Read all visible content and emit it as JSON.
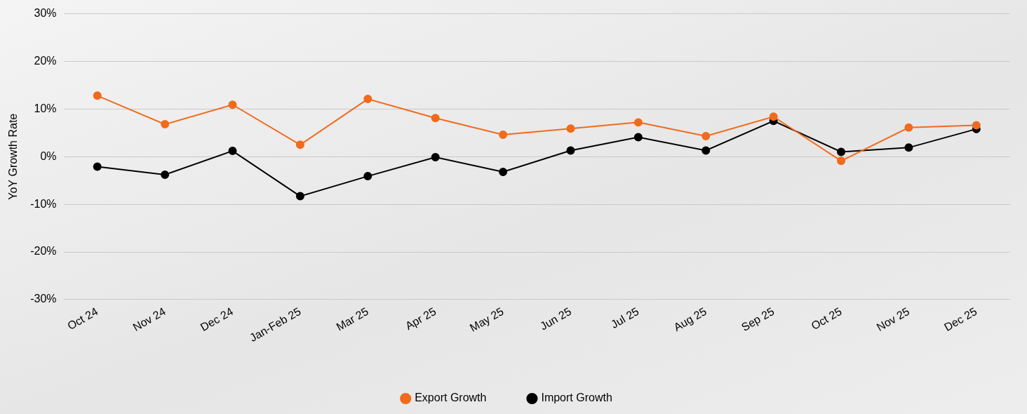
{
  "chart_data": {
    "type": "line",
    "y_label": "YoY Growth Rate",
    "categories": [
      "Oct 24",
      "Nov 24",
      "Dec 24",
      "Jan-Feb 25",
      "Mar 25",
      "Apr 25",
      "May 25",
      "Jun 25",
      "Jul 25",
      "Aug 25",
      "Sep 25",
      "Oct 25",
      "Nov 25",
      "Dec 25"
    ],
    "series": [
      {
        "name": "Export Growth",
        "color": "#f26a1b",
        "marker": "circle",
        "line_style": "solid",
        "values": [
          12.8,
          6.8,
          10.9,
          2.5,
          12.1,
          8.1,
          4.6,
          5.9,
          7.2,
          4.3,
          8.4,
          -0.9,
          6.1,
          6.6
        ]
      },
      {
        "name": "Import Growth",
        "color": "#000000",
        "marker": "circle",
        "line_style": "solid",
        "values": [
          -2.1,
          -3.8,
          1.2,
          -8.3,
          -4.1,
          -0.1,
          -3.2,
          1.3,
          4.1,
          1.3,
          7.5,
          1.0,
          1.9,
          5.8
        ]
      }
    ],
    "ylim": [
      -30,
      30
    ],
    "yticks": [
      {
        "value": -30,
        "label": "-30%"
      },
      {
        "value": -20,
        "label": "-20%"
      },
      {
        "value": -10,
        "label": "-10%"
      },
      {
        "value": 0,
        "label": "0%"
      },
      {
        "value": 10,
        "label": "10%"
      },
      {
        "value": 20,
        "label": "20%"
      },
      {
        "value": 30,
        "label": "30%"
      }
    ],
    "grid": true,
    "legend": "bottom"
  }
}
